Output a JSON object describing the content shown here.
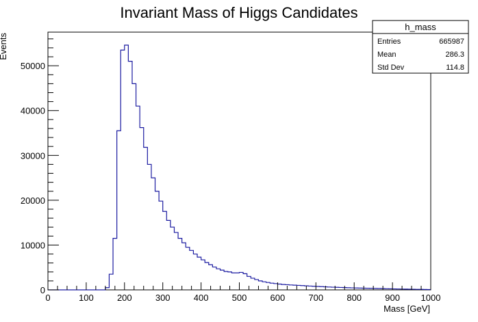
{
  "chart_data": {
    "type": "bar",
    "title": "Invariant Mass of Higgs Candidates",
    "xlabel": "Mass [GeV]",
    "ylabel": "Events",
    "xlim": [
      0,
      1000
    ],
    "ylim": [
      0,
      57500
    ],
    "bin_width": 10,
    "x_ticks": [
      0,
      100,
      200,
      300,
      400,
      500,
      600,
      700,
      800,
      900,
      1000
    ],
    "y_ticks": [
      0,
      10000,
      20000,
      30000,
      40000,
      50000
    ],
    "bin_values": [
      0,
      0,
      0,
      0,
      0,
      0,
      0,
      0,
      0,
      0,
      0,
      0,
      0,
      0,
      0,
      500,
      3500,
      11500,
      35500,
      53500,
      54600,
      51000,
      46000,
      41000,
      36200,
      31800,
      28000,
      25000,
      22000,
      19800,
      17500,
      15500,
      14000,
      12800,
      11500,
      10500,
      9500,
      8800,
      8000,
      7300,
      6700,
      6100,
      5600,
      5100,
      4700,
      4400,
      4100,
      4000,
      3800,
      3800,
      3900,
      3600,
      3000,
      2600,
      2300,
      2000,
      1800,
      1650,
      1500,
      1400,
      1300,
      1200,
      1150,
      1100,
      1050,
      1000,
      950,
      900,
      850,
      800,
      760,
      720,
      680,
      640,
      600,
      570,
      540,
      510,
      480,
      450,
      420,
      400,
      380,
      360,
      340,
      320,
      300,
      280,
      260,
      240,
      220,
      200,
      185,
      170,
      155,
      140,
      125,
      110,
      95,
      80
    ],
    "stats_box": {
      "name": "h_mass",
      "rows": [
        {
          "label": "Entries",
          "value": "665987"
        },
        {
          "label": "Mean",
          "value": "286.3"
        },
        {
          "label": "Std Dev",
          "value": "114.8"
        }
      ]
    },
    "line_color": "#1a1aa0",
    "grid": false,
    "legend": "top-right"
  }
}
